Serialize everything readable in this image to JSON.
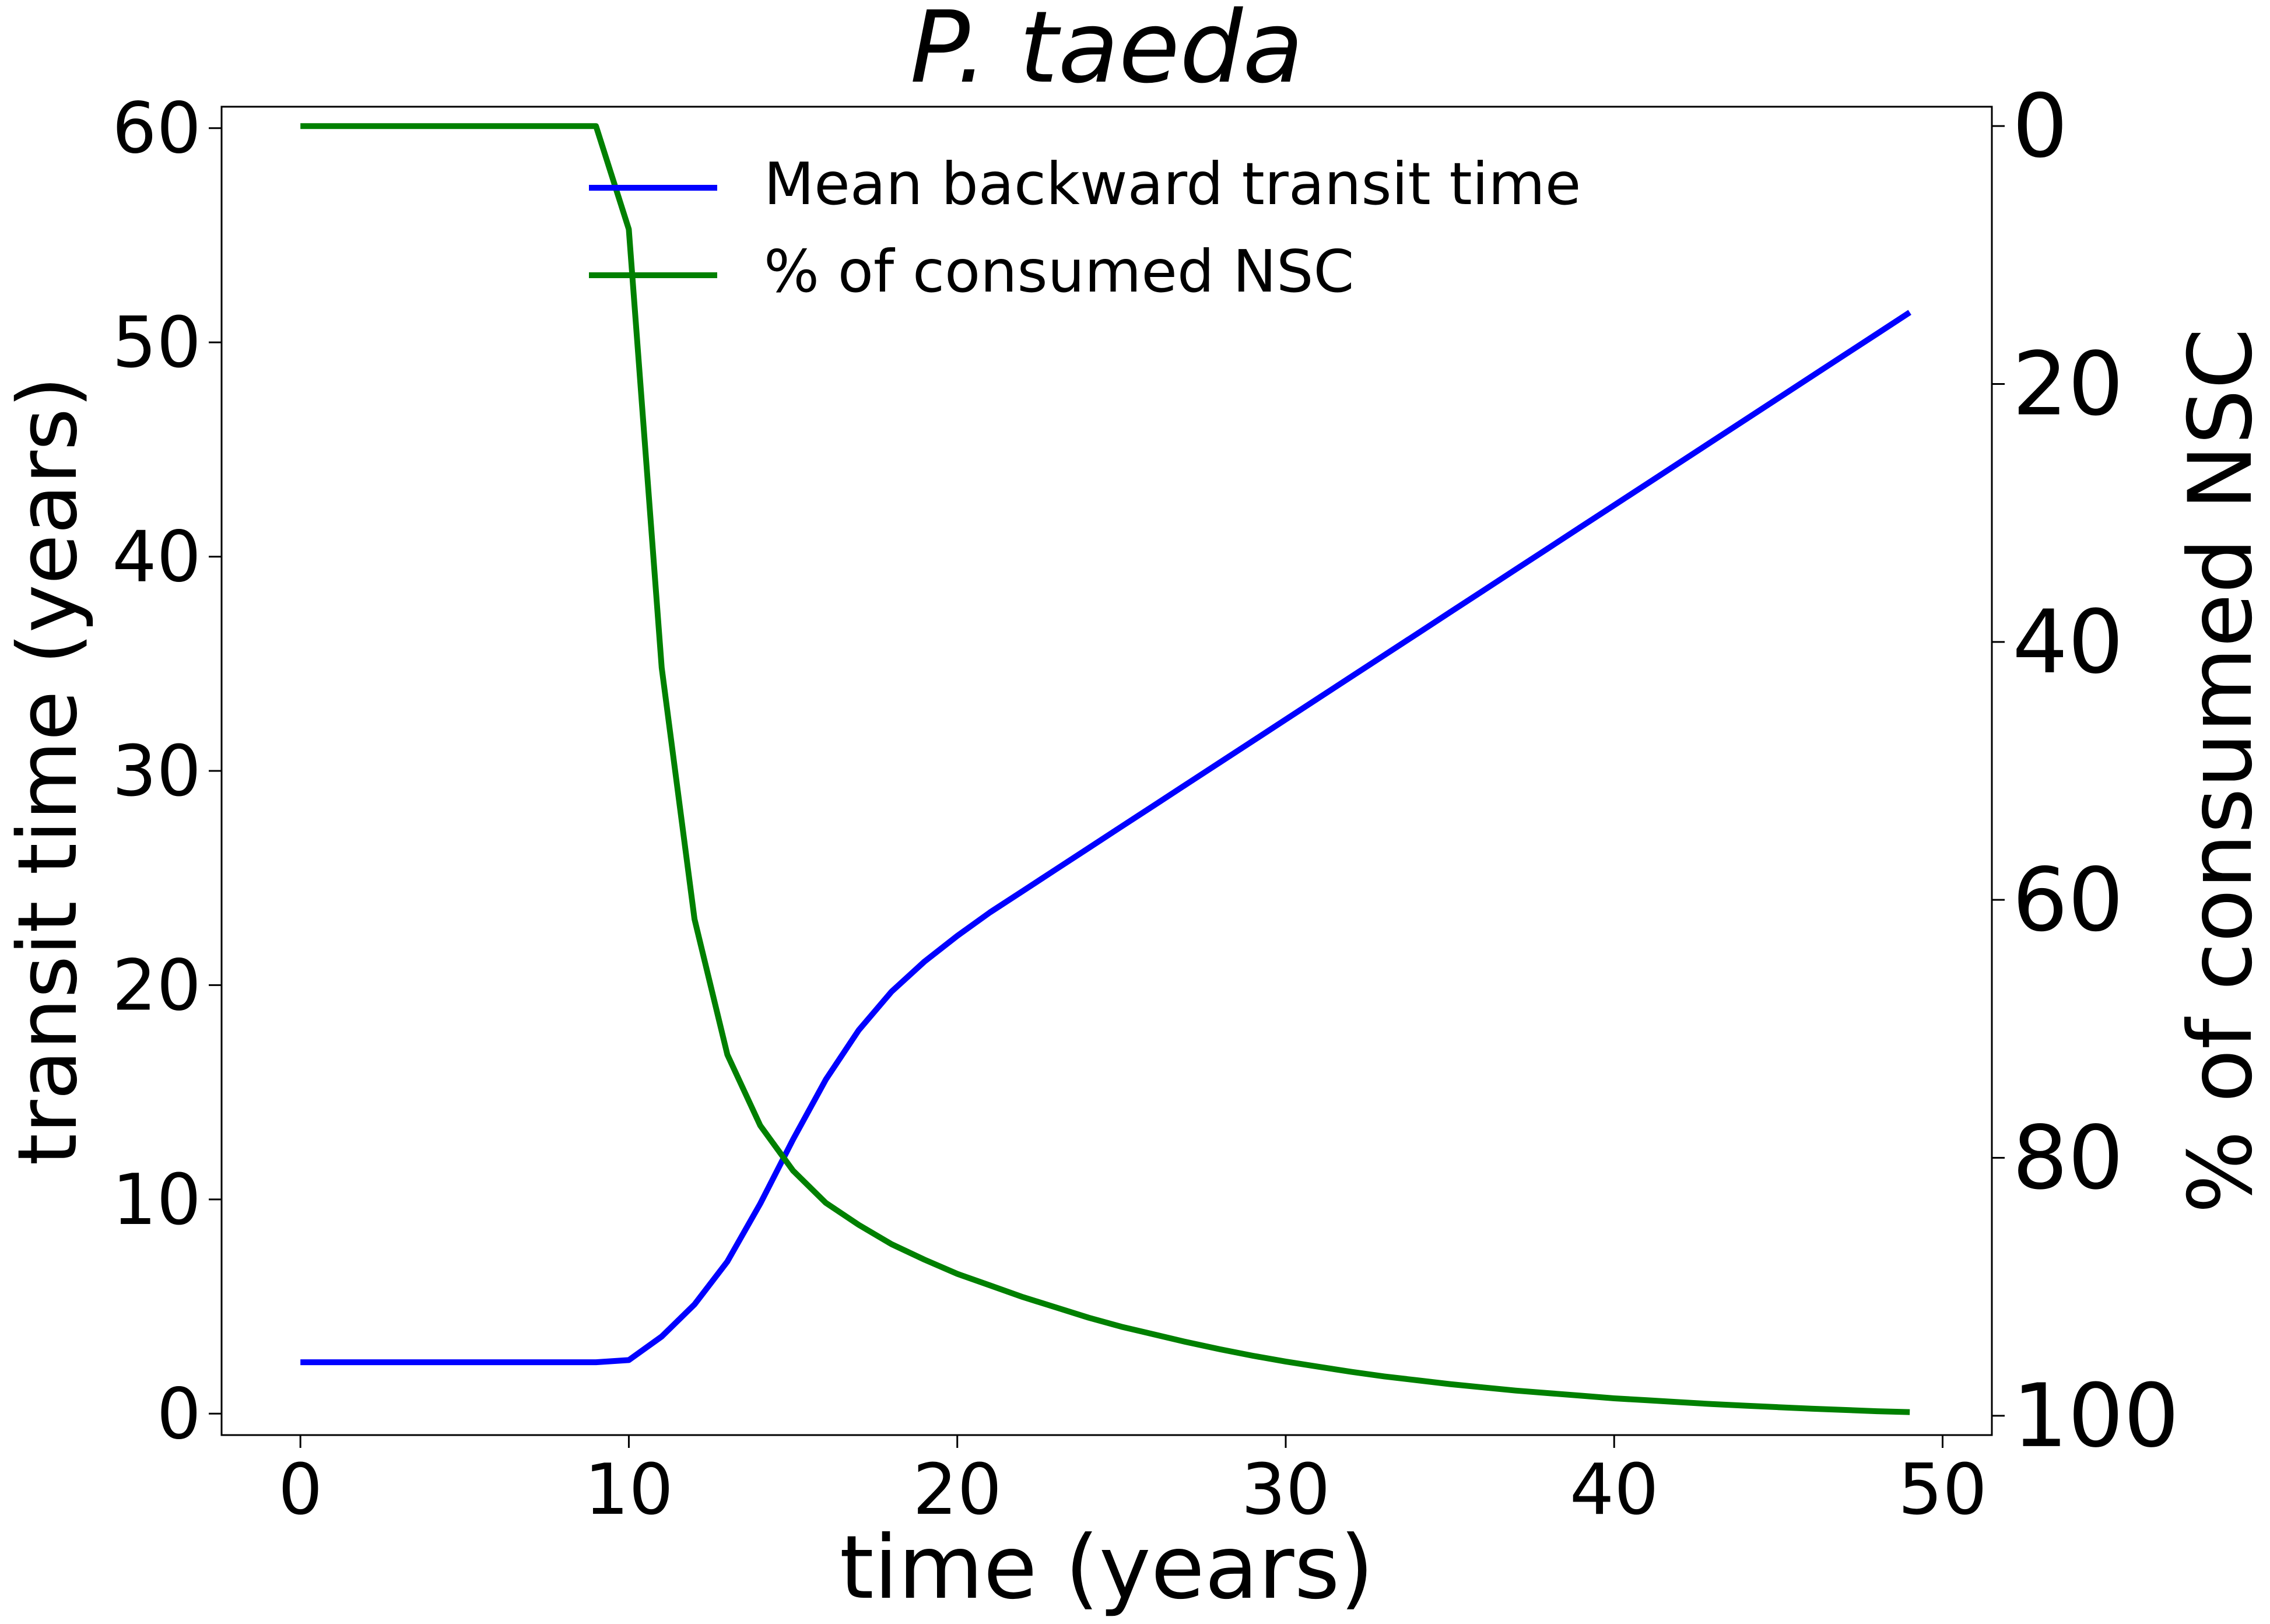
{
  "chart_data": {
    "type": "line",
    "title": "P. taeda",
    "xlabel": "time (years)",
    "ylabel_left": "transit time (years)",
    "ylabel_right": "% of consumed NSC",
    "xlim": [
      -2.4,
      51.5
    ],
    "ylim_left": [
      -1,
      61
    ],
    "ylim_right": [
      101.5,
      -1.5
    ],
    "right_axis_inverted": true,
    "xticks": [
      0,
      10,
      20,
      30,
      40,
      50
    ],
    "yticks_left": [
      0,
      10,
      20,
      30,
      40,
      50,
      60
    ],
    "yticks_right": [
      0,
      20,
      40,
      60,
      80,
      100
    ],
    "grid": false,
    "legend_position": "upper-center",
    "series": [
      {
        "name": "Mean backward transit time",
        "axis": "left",
        "color": "#0000ff",
        "x": [
          0,
          1,
          2,
          3,
          4,
          5,
          6,
          7,
          8,
          9,
          10,
          11,
          12,
          13,
          14,
          15,
          16,
          17,
          18,
          19,
          20,
          21,
          22,
          23,
          24,
          25,
          26,
          27,
          28,
          29,
          30,
          31,
          32,
          33,
          34,
          35,
          36,
          37,
          38,
          39,
          40,
          41,
          42,
          43,
          44,
          45,
          46,
          47,
          48,
          49
        ],
        "y": [
          2.4,
          2.4,
          2.4,
          2.4,
          2.4,
          2.4,
          2.4,
          2.4,
          2.4,
          2.4,
          2.5,
          3.6,
          5.1,
          7.1,
          9.8,
          12.8,
          15.6,
          17.9,
          19.7,
          21.1,
          22.3,
          23.4,
          24.4,
          25.4,
          26.4,
          27.4,
          28.4,
          29.4,
          30.4,
          31.4,
          32.4,
          33.4,
          34.4,
          35.4,
          36.4,
          37.4,
          38.4,
          39.4,
          40.4,
          41.4,
          42.4,
          43.4,
          44.4,
          45.4,
          46.4,
          47.4,
          48.4,
          49.4,
          50.4,
          51.4
        ]
      },
      {
        "name": "% of consumed NSC",
        "axis": "right",
        "color": "#008000",
        "x": [
          0,
          1,
          2,
          3,
          4,
          5,
          6,
          7,
          8,
          9,
          10,
          11,
          12,
          13,
          14,
          15,
          16,
          17,
          18,
          19,
          20,
          21,
          22,
          23,
          24,
          25,
          26,
          27,
          28,
          29,
          30,
          31,
          32,
          33,
          34,
          35,
          36,
          37,
          38,
          39,
          40,
          41,
          42,
          43,
          44,
          45,
          46,
          47,
          48,
          49
        ],
        "y": [
          0,
          0,
          0,
          0,
          0,
          0,
          0,
          0,
          0,
          0,
          8,
          42,
          61.5,
          72,
          77.5,
          81,
          83.5,
          85.2,
          86.7,
          87.9,
          89,
          89.9,
          90.8,
          91.6,
          92.4,
          93.1,
          93.7,
          94.3,
          94.85,
          95.35,
          95.8,
          96.2,
          96.6,
          96.95,
          97.25,
          97.55,
          97.8,
          98.05,
          98.25,
          98.45,
          98.65,
          98.8,
          98.95,
          99.1,
          99.22,
          99.34,
          99.45,
          99.55,
          99.65,
          99.72
        ]
      }
    ]
  }
}
